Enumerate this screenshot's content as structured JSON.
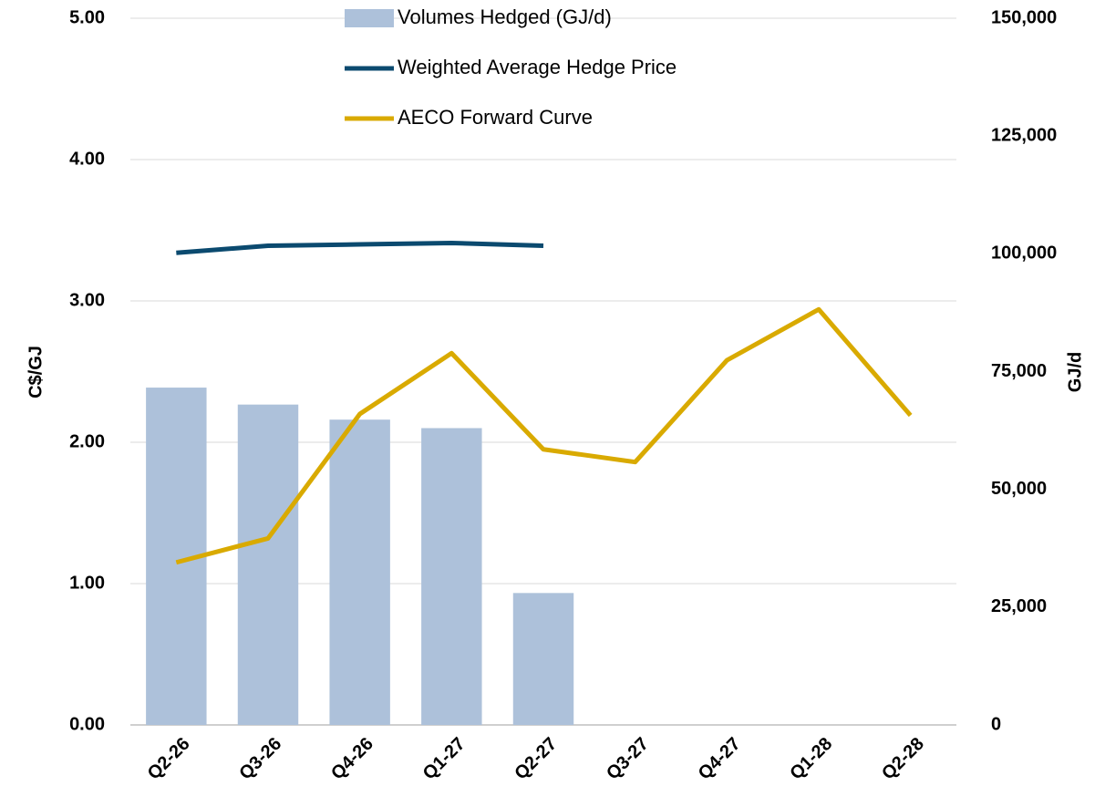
{
  "chart_data": {
    "type": "bar",
    "categories": [
      "Q2-26",
      "Q3-26",
      "Q4-26",
      "Q1-27",
      "Q2-27",
      "Q3-27",
      "Q4-27",
      "Q1-28",
      "Q2-28"
    ],
    "series": [
      {
        "name": "Volumes Hedged (GJ/d)",
        "type": "bar",
        "axis": "y2",
        "color": "#adc1da",
        "values": [
          71600,
          68000,
          64800,
          63000,
          28000,
          null,
          null,
          null,
          null
        ]
      },
      {
        "name": "Weighted Average Hedge Price",
        "type": "line",
        "color": "#0b4a6f",
        "values": [
          3.34,
          3.39,
          3.4,
          3.41,
          3.39,
          null,
          null,
          null,
          null
        ]
      },
      {
        "name": "AECO Forward Curve",
        "type": "line",
        "color": "#d9aa00",
        "values": [
          1.15,
          1.32,
          2.2,
          2.63,
          1.95,
          1.86,
          2.58,
          2.94,
          2.19
        ]
      }
    ],
    "ylabel": "C$/GJ",
    "y2label": "GJ/d",
    "ylim": [
      0,
      5
    ],
    "yticks": [
      {
        "value": 0,
        "label": "0.00"
      },
      {
        "value": 1,
        "label": "1.00"
      },
      {
        "value": 2,
        "label": "2.00"
      },
      {
        "value": 3,
        "label": "3.00"
      },
      {
        "value": 4,
        "label": "4.00"
      },
      {
        "value": 5,
        "label": "5.00"
      }
    ],
    "y2lim": [
      0,
      150000
    ],
    "y2ticks": [
      0,
      {
        "value": 25000,
        "label": "25,000"
      },
      {
        "value": 50000,
        "label": "50,000"
      },
      {
        "value": 75000,
        "label": "75,000"
      },
      {
        "value": 100000,
        "label": "100,000"
      },
      {
        "value": 125000,
        "label": "125,000"
      },
      {
        "value": 150000,
        "label": "150,000"
      }
    ],
    "grid": true,
    "legend": "top"
  }
}
